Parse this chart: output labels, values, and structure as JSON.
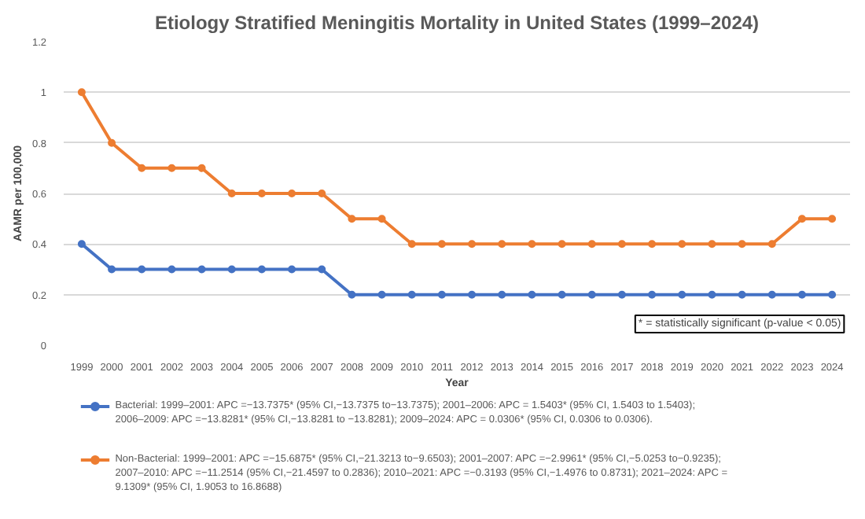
{
  "chart_data": {
    "type": "line",
    "title": "Etiology Stratified Meningitis Mortality in United States (1999–2024)",
    "xlabel": "Year",
    "ylabel": "AAMR per 100,000",
    "categories": [
      "1999",
      "2000",
      "2001",
      "2002",
      "2003",
      "2004",
      "2005",
      "2006",
      "2007",
      "2008",
      "2009",
      "2010",
      "2011",
      "2012",
      "2013",
      "2014",
      "2015",
      "2016",
      "2017",
      "2018",
      "2019",
      "2020",
      "2021",
      "2022",
      "2023",
      "2024"
    ],
    "series": [
      {
        "name": "Bacterial: 1999–2001: APC =−13.7375* (95% CI,−13.7375 to−13.7375); 2001–2006: APC = 1.5403* (95% CI, 1.5403 to 1.5403); 2006–2009: APC =−13.8281* (95% CI,−13.8281 to −13.8281); 2009–2024: APC = 0.0306* (95% CI, 0.0306 to 0.0306).",
        "color": "#4472c4",
        "values": [
          0.4,
          0.3,
          0.3,
          0.3,
          0.3,
          0.3,
          0.3,
          0.3,
          0.3,
          0.2,
          0.2,
          0.2,
          0.2,
          0.2,
          0.2,
          0.2,
          0.2,
          0.2,
          0.2,
          0.2,
          0.2,
          0.2,
          0.2,
          0.2,
          0.2,
          0.2
        ]
      },
      {
        "name": "Non-Bacterial: 1999–2001: APC =−15.6875* (95% CI,−21.3213 to−9.6503); 2001–2007: APC =−2.9961* (95% CI,−5.0253 to−0.9235); 2007–2010: APC =−11.2514 (95% CI,−21.4597 to 0.2836); 2010–2021: APC =−0.3193 (95% CI,−1.4976 to 0.8731); 2021–2024: APC = 9.1309* (95% CI, 1.9053 to 16.8688)",
        "color": "#ed7d31",
        "values": [
          1.0,
          0.8,
          0.7,
          0.7,
          0.7,
          0.6,
          0.6,
          0.6,
          0.6,
          0.5,
          0.5,
          0.4,
          0.4,
          0.4,
          0.4,
          0.4,
          0.4,
          0.4,
          0.4,
          0.4,
          0.4,
          0.4,
          0.4,
          0.4,
          0.5,
          0.5
        ]
      }
    ],
    "ylim": [
      0,
      1.2
    ],
    "yticks": [
      0,
      0.2,
      0.4,
      0.6,
      0.8,
      1,
      1.2
    ],
    "grid": "y",
    "legend": "bottom",
    "marker": "circle",
    "line_style": "solid",
    "annotations": [
      "* = statistically significant (p-value < 0.05)"
    ]
  }
}
